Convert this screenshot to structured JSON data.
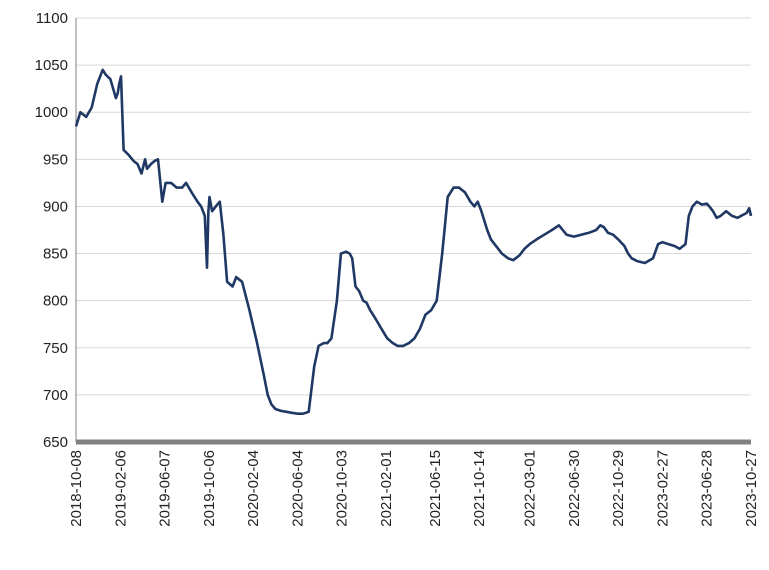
{
  "chart_data": {
    "type": "line",
    "title": "",
    "xlabel": "",
    "ylabel": "",
    "ylim": [
      650,
      1100
    ],
    "y_ticks": [
      "650",
      "700",
      "750",
      "800",
      "850",
      "900",
      "950",
      "1000",
      "1050",
      "1100"
    ],
    "x_ticks": [
      "2018-10-08",
      "2019-02-06",
      "2019-06-07",
      "2019-10-06",
      "2020-02-04",
      "2020-06-04",
      "2020-10-03",
      "2021-02-01",
      "2021-06-15",
      "2021-10-14",
      "2022-03-01",
      "2022-06-30",
      "2022-10-29",
      "2023-02-27",
      "2023-06-28",
      "2023-10-27"
    ],
    "grid": true,
    "legend": "none",
    "colors": {
      "line": "#1f3864",
      "grid": "#d9d9d9",
      "axis": "#808080"
    },
    "series": [
      {
        "x": [
          "2018-10-08",
          "2018-10-20",
          "2018-11-05",
          "2018-11-20",
          "2018-12-05",
          "2018-12-20",
          "2018-12-28",
          "2019-01-10",
          "2019-01-25",
          "2019-01-30",
          "2019-02-03",
          "2019-02-08",
          "2019-02-15",
          "2019-02-28",
          "2019-03-15",
          "2019-03-25",
          "2019-04-05",
          "2019-04-15",
          "2019-04-20",
          "2019-05-01",
          "2019-05-10",
          "2019-05-20",
          "2019-06-01",
          "2019-06-10",
          "2019-06-25",
          "2019-07-10",
          "2019-07-25",
          "2019-08-05",
          "2019-08-20",
          "2019-09-05",
          "2019-09-15",
          "2019-09-25",
          "2019-10-01",
          "2019-10-05",
          "2019-10-08",
          "2019-10-15",
          "2019-10-25",
          "2019-11-05",
          "2019-11-15",
          "2019-11-25",
          "2019-12-10",
          "2019-12-20",
          "2020-01-05",
          "2020-01-25",
          "2020-02-15",
          "2020-03-05",
          "2020-03-15",
          "2020-03-25",
          "2020-04-05",
          "2020-04-20",
          "2020-05-05",
          "2020-05-20",
          "2020-06-05",
          "2020-06-20",
          "2020-07-05",
          "2020-07-20",
          "2020-08-01",
          "2020-08-15",
          "2020-08-20",
          "2020-08-25",
          "2020-09-05",
          "2020-09-20",
          "2020-10-01",
          "2020-10-15",
          "2020-10-25",
          "2020-11-01",
          "2020-11-10",
          "2020-11-20",
          "2020-12-01",
          "2020-12-10",
          "2020-12-20",
          "2021-01-05",
          "2021-01-20",
          "2021-02-05",
          "2021-02-20",
          "2021-03-05",
          "2021-03-20",
          "2021-04-05",
          "2021-04-20",
          "2021-05-05",
          "2021-05-20",
          "2021-06-05",
          "2021-06-20",
          "2021-07-05",
          "2021-07-20",
          "2021-08-05",
          "2021-08-20",
          "2021-09-05",
          "2021-09-20",
          "2021-10-01",
          "2021-10-10",
          "2021-10-20",
          "2021-10-28",
          "2021-11-05",
          "2021-11-15",
          "2021-11-25",
          "2021-12-05",
          "2021-12-15",
          "2022-01-01",
          "2022-01-15",
          "2022-02-01",
          "2022-02-15",
          "2022-03-01",
          "2022-03-20",
          "2022-04-10",
          "2022-05-01",
          "2022-05-20",
          "2022-06-10",
          "2022-06-30",
          "2022-07-20",
          "2022-08-10",
          "2022-08-30",
          "2022-09-10",
          "2022-09-20",
          "2022-10-01",
          "2022-10-15",
          "2022-10-29",
          "2022-11-15",
          "2022-11-25",
          "2022-12-05",
          "2022-12-20",
          "2023-01-10",
          "2023-02-01",
          "2023-02-15",
          "2023-02-27",
          "2023-03-15",
          "2023-04-01",
          "2023-04-15",
          "2023-05-01",
          "2023-05-10",
          "2023-05-20",
          "2023-06-01",
          "2023-06-15",
          "2023-06-28",
          "2023-07-05",
          "2023-07-15",
          "2023-07-25",
          "2023-08-05",
          "2023-08-20",
          "2023-09-05",
          "2023-09-20",
          "2023-10-05",
          "2023-10-15",
          "2023-10-22",
          "2023-10-27"
        ],
        "y": [
          985,
          1000,
          995,
          1005,
          1030,
          1045,
          1040,
          1035,
          1015,
          1020,
          1030,
          1038,
          960,
          955,
          948,
          945,
          935,
          950,
          940,
          945,
          948,
          950,
          905,
          925,
          925,
          920,
          920,
          925,
          915,
          905,
          900,
          890,
          835,
          895,
          910,
          895,
          900,
          905,
          870,
          820,
          815,
          825,
          820,
          790,
          755,
          720,
          700,
          690,
          685,
          683,
          682,
          681,
          680,
          680,
          682,
          730,
          752,
          755,
          755,
          755,
          760,
          800,
          850,
          852,
          850,
          845,
          815,
          810,
          800,
          798,
          790,
          780,
          770,
          760,
          755,
          752,
          752,
          755,
          760,
          770,
          785,
          790,
          800,
          850,
          910,
          920,
          920,
          915,
          905,
          900,
          905,
          895,
          885,
          875,
          865,
          860,
          855,
          850,
          845,
          843,
          848,
          855,
          860,
          865,
          870,
          875,
          880,
          870,
          868,
          870,
          872,
          875,
          880,
          878,
          872,
          870,
          865,
          858,
          850,
          845,
          842,
          840,
          845,
          860,
          862,
          860,
          858,
          855,
          860,
          890,
          900,
          905,
          902,
          903,
          900,
          895,
          888,
          890,
          895,
          890,
          888,
          891,
          893,
          898,
          890
        ]
      }
    ]
  }
}
